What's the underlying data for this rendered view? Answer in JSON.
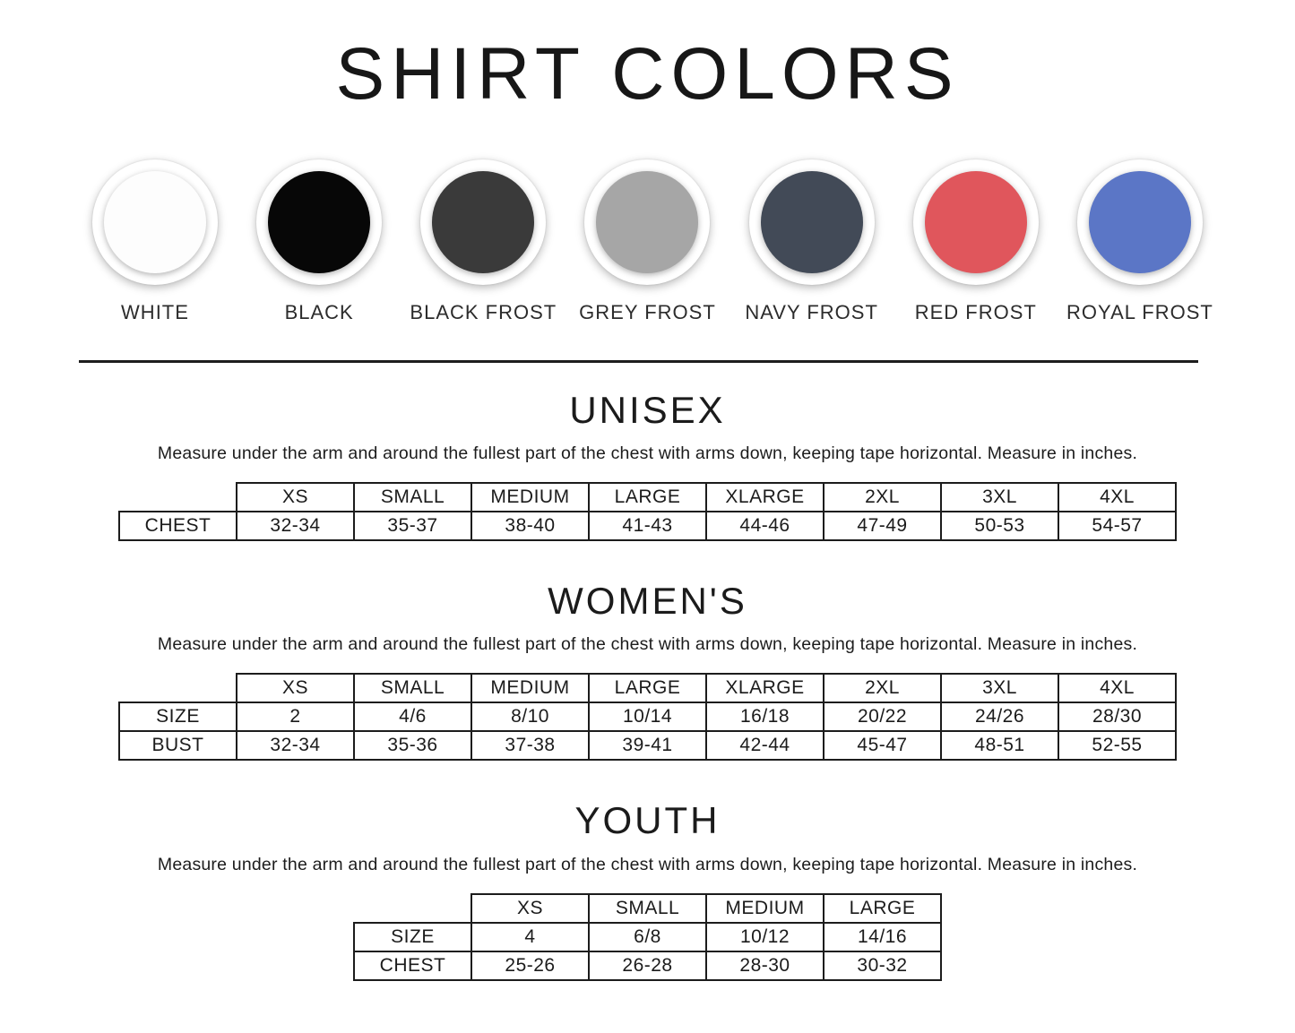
{
  "page": {
    "title": "SHIRT COLORS"
  },
  "swatches": [
    {
      "label": "WHITE",
      "color": "#fdfdfd",
      "heathered": false
    },
    {
      "label": "BLACK",
      "color": "#070707",
      "heathered": false
    },
    {
      "label": "BLACK FROST",
      "color": "#3a3a3a",
      "heathered": true
    },
    {
      "label": "GREY FROST",
      "color": "#a6a6a6",
      "heathered": true
    },
    {
      "label": "NAVY FROST",
      "color": "#424a57",
      "heathered": true
    },
    {
      "label": "RED FROST",
      "color": "#e0565c",
      "heathered": true
    },
    {
      "label": "ROYAL FROST",
      "color": "#5b76c6",
      "heathered": true
    }
  ],
  "sections": [
    {
      "title": "UNISEX",
      "note": "Measure under the arm and around the fullest part of the chest with arms down, keeping tape horizontal. Measure in inches.",
      "table": {
        "columns": [
          "XS",
          "SMALL",
          "MEDIUM",
          "LARGE",
          "XLARGE",
          "2XL",
          "3XL",
          "4XL"
        ],
        "rows": [
          {
            "label": "CHEST",
            "values": [
              "32-34",
              "35-37",
              "38-40",
              "41-43",
              "44-46",
              "47-49",
              "50-53",
              "54-57"
            ]
          }
        ]
      }
    },
    {
      "title": "WOMEN'S",
      "note": "Measure under the arm and around the fullest part of the chest with arms down, keeping tape horizontal. Measure in inches.",
      "table": {
        "columns": [
          "XS",
          "SMALL",
          "MEDIUM",
          "LARGE",
          "XLARGE",
          "2XL",
          "3XL",
          "4XL"
        ],
        "rows": [
          {
            "label": "SIZE",
            "values": [
              "2",
              "4/6",
              "8/10",
              "10/14",
              "16/18",
              "20/22",
              "24/26",
              "28/30"
            ]
          },
          {
            "label": "BUST",
            "values": [
              "32-34",
              "35-36",
              "37-38",
              "39-41",
              "42-44",
              "45-47",
              "48-51",
              "52-55"
            ]
          }
        ]
      }
    },
    {
      "title": "YOUTH",
      "note": "Measure under the arm and around the fullest part of the chest with arms down, keeping tape horizontal. Measure in inches.",
      "table": {
        "columns": [
          "XS",
          "SMALL",
          "MEDIUM",
          "LARGE"
        ],
        "rows": [
          {
            "label": "SIZE",
            "values": [
              "4",
              "6/8",
              "10/12",
              "14/16"
            ]
          },
          {
            "label": "CHEST",
            "values": [
              "25-26",
              "26-28",
              "28-30",
              "30-32"
            ]
          }
        ]
      }
    }
  ]
}
